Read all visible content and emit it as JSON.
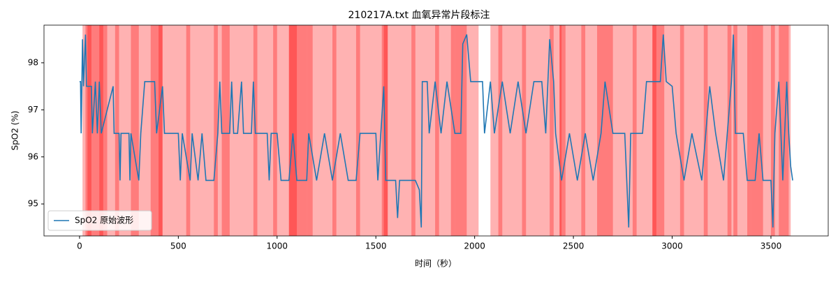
{
  "chart_data": {
    "type": "line",
    "title": "210217A.txt 血氧异常片段标注",
    "xlabel": "时间（秒）",
    "ylabel": "SpO2 (%)",
    "xlim": [
      -180,
      3790
    ],
    "ylim": [
      94.32,
      98.8
    ],
    "xticks": [
      0,
      500,
      1000,
      1500,
      2000,
      2500,
      3000,
      3500
    ],
    "yticks": [
      95,
      96,
      97,
      98
    ],
    "legend": "lower left",
    "span_color": "#ff0000",
    "span_alpha": 0.3,
    "spans": [
      [
        15,
        60
      ],
      [
        30,
        120
      ],
      [
        40,
        140
      ],
      [
        100,
        200
      ],
      [
        180,
        300
      ],
      [
        260,
        420
      ],
      [
        360,
        420
      ],
      [
        400,
        560
      ],
      [
        540,
        700
      ],
      [
        680,
        760
      ],
      [
        720,
        900
      ],
      [
        880,
        1000
      ],
      [
        980,
        1100
      ],
      [
        1060,
        1180
      ],
      [
        1060,
        1150
      ],
      [
        1150,
        1300
      ],
      [
        1280,
        1420
      ],
      [
        1400,
        1560
      ],
      [
        1530,
        1560
      ],
      [
        1540,
        1700
      ],
      [
        1680,
        1820
      ],
      [
        1800,
        1900
      ],
      [
        1880,
        2020
      ],
      [
        1900,
        1960
      ],
      [
        2080,
        2140
      ],
      [
        2120,
        2260
      ],
      [
        2240,
        2400
      ],
      [
        2380,
        2440
      ],
      [
        2430,
        2460
      ],
      [
        2430,
        2560
      ],
      [
        2540,
        2700
      ],
      [
        2620,
        2680
      ],
      [
        2680,
        2820
      ],
      [
        2800,
        2920
      ],
      [
        2900,
        3060
      ],
      [
        2900,
        2960
      ],
      [
        3040,
        3180
      ],
      [
        3160,
        3300
      ],
      [
        3280,
        3400
      ],
      [
        3310,
        3330
      ],
      [
        3380,
        3520
      ],
      [
        3400,
        3460
      ],
      [
        3500,
        3600
      ],
      [
        3540,
        3590
      ]
    ],
    "series": [
      {
        "name": "SpO2 原始波形",
        "color": "#1f77b4",
        "x": [
          0,
          5,
          8,
          15,
          20,
          30,
          35,
          60,
          65,
          80,
          90,
          100,
          110,
          170,
          175,
          200,
          205,
          210,
          250,
          255,
          260,
          300,
          310,
          330,
          380,
          390,
          420,
          430,
          500,
          510,
          520,
          560,
          570,
          600,
          620,
          640,
          680,
          700,
          710,
          720,
          760,
          770,
          780,
          800,
          820,
          830,
          870,
          880,
          890,
          950,
          960,
          970,
          1000,
          1020,
          1060,
          1080,
          1100,
          1150,
          1160,
          1200,
          1240,
          1280,
          1320,
          1360,
          1400,
          1420,
          1500,
          1510,
          1540,
          1550,
          1600,
          1610,
          1620,
          1700,
          1720,
          1730,
          1735,
          1760,
          1770,
          1800,
          1830,
          1860,
          1900,
          1930,
          1940,
          1960,
          1980,
          2040,
          2050,
          2080,
          2100,
          2140,
          2180,
          2220,
          2260,
          2300,
          2340,
          2360,
          2380,
          2400,
          2410,
          2440,
          2480,
          2520,
          2560,
          2600,
          2640,
          2660,
          2700,
          2760,
          2780,
          2790,
          2850,
          2870,
          2940,
          2955,
          2970,
          3000,
          3020,
          3060,
          3100,
          3150,
          3190,
          3220,
          3260,
          3300,
          3310,
          3320,
          3360,
          3380,
          3420,
          3440,
          3460,
          3500,
          3510,
          3520,
          3540,
          3560,
          3580,
          3590,
          3600,
          3610
        ],
        "values": [
          97.6,
          97.6,
          96.5,
          98.5,
          97.5,
          98.6,
          97.5,
          97.5,
          96.5,
          97.6,
          96.5,
          97.6,
          96.5,
          97.5,
          96.5,
          96.5,
          95.5,
          96.5,
          96.5,
          95.5,
          96.5,
          95.5,
          96.5,
          97.6,
          97.6,
          96.5,
          97.5,
          96.5,
          96.5,
          95.5,
          96.5,
          95.5,
          96.5,
          95.5,
          96.5,
          95.5,
          95.5,
          96.5,
          97.6,
          96.5,
          96.5,
          97.6,
          96.5,
          96.5,
          97.6,
          96.5,
          96.5,
          97.6,
          96.5,
          96.5,
          95.5,
          96.5,
          96.5,
          95.5,
          95.5,
          96.5,
          95.5,
          95.5,
          96.5,
          95.5,
          96.5,
          95.5,
          96.5,
          95.5,
          95.5,
          96.5,
          96.5,
          95.5,
          97.5,
          95.5,
          95.5,
          94.7,
          95.5,
          95.5,
          95.3,
          94.5,
          97.6,
          97.6,
          96.5,
          97.6,
          96.5,
          97.6,
          96.5,
          96.5,
          98.4,
          98.6,
          97.6,
          97.6,
          96.5,
          97.6,
          96.5,
          97.6,
          96.5,
          97.6,
          96.5,
          97.6,
          97.6,
          96.5,
          98.5,
          97.6,
          96.5,
          95.5,
          96.5,
          95.5,
          96.5,
          95.5,
          96.5,
          97.6,
          96.5,
          96.5,
          94.5,
          96.5,
          96.5,
          97.6,
          97.6,
          98.6,
          97.6,
          97.5,
          96.5,
          95.5,
          96.5,
          95.5,
          97.5,
          96.5,
          95.5,
          97.6,
          98.6,
          96.5,
          96.5,
          95.5,
          95.5,
          96.5,
          95.5,
          95.5,
          94.5,
          96.5,
          97.6,
          95.5,
          97.6,
          96.5,
          95.8,
          95.5
        ]
      }
    ]
  }
}
